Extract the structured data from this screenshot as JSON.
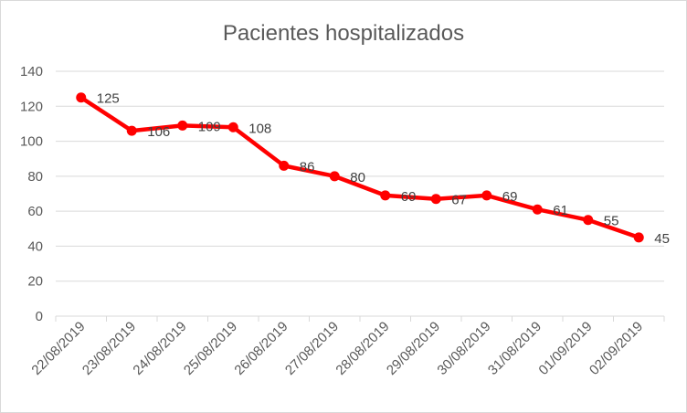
{
  "chart_data": {
    "type": "line",
    "title": "Pacientes hospitalizados",
    "xlabel": "",
    "ylabel": "",
    "categories": [
      "22/08/2019",
      "23/08/2019",
      "24/08/2019",
      "25/08/2019",
      "26/08/2019",
      "27/08/2019",
      "28/08/2019",
      "29/08/2019",
      "30/08/2019",
      "31/08/2019",
      "01/09/2019",
      "02/09/2019"
    ],
    "series": [
      {
        "values": [
          125,
          106,
          109,
          108,
          86,
          80,
          69,
          67,
          69,
          61,
          55,
          45
        ],
        "color": "#ff0000"
      }
    ],
    "ylim": [
      0,
      140
    ],
    "yticks": [
      0,
      20,
      40,
      60,
      80,
      100,
      120,
      140
    ],
    "grid": true,
    "legend": "none",
    "data_labels": true
  }
}
